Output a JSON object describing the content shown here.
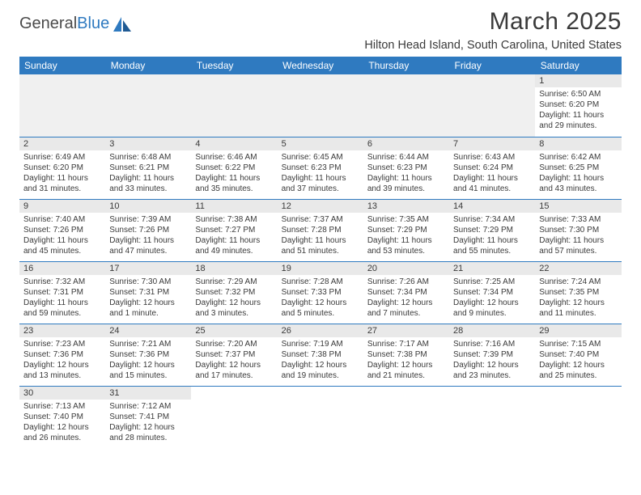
{
  "brand": {
    "part1": "General",
    "part2": "Blue"
  },
  "title": "March 2025",
  "location": "Hilton Head Island, South Carolina, United States",
  "colors": {
    "header_bg": "#2f7ac0",
    "header_fg": "#ffffff",
    "daynum_bg": "#e9e9e9",
    "text": "#3a3a3a",
    "rule": "#2f7ac0",
    "page_bg": "#ffffff"
  },
  "day_headers": [
    "Sunday",
    "Monday",
    "Tuesday",
    "Wednesday",
    "Thursday",
    "Friday",
    "Saturday"
  ],
  "weeks": [
    [
      null,
      null,
      null,
      null,
      null,
      null,
      {
        "n": "1",
        "sr": "Sunrise: 6:50 AM",
        "ss": "Sunset: 6:20 PM",
        "dl": "Daylight: 11 hours and 29 minutes."
      }
    ],
    [
      {
        "n": "2",
        "sr": "Sunrise: 6:49 AM",
        "ss": "Sunset: 6:20 PM",
        "dl": "Daylight: 11 hours and 31 minutes."
      },
      {
        "n": "3",
        "sr": "Sunrise: 6:48 AM",
        "ss": "Sunset: 6:21 PM",
        "dl": "Daylight: 11 hours and 33 minutes."
      },
      {
        "n": "4",
        "sr": "Sunrise: 6:46 AM",
        "ss": "Sunset: 6:22 PM",
        "dl": "Daylight: 11 hours and 35 minutes."
      },
      {
        "n": "5",
        "sr": "Sunrise: 6:45 AM",
        "ss": "Sunset: 6:23 PM",
        "dl": "Daylight: 11 hours and 37 minutes."
      },
      {
        "n": "6",
        "sr": "Sunrise: 6:44 AM",
        "ss": "Sunset: 6:23 PM",
        "dl": "Daylight: 11 hours and 39 minutes."
      },
      {
        "n": "7",
        "sr": "Sunrise: 6:43 AM",
        "ss": "Sunset: 6:24 PM",
        "dl": "Daylight: 11 hours and 41 minutes."
      },
      {
        "n": "8",
        "sr": "Sunrise: 6:42 AM",
        "ss": "Sunset: 6:25 PM",
        "dl": "Daylight: 11 hours and 43 minutes."
      }
    ],
    [
      {
        "n": "9",
        "sr": "Sunrise: 7:40 AM",
        "ss": "Sunset: 7:26 PM",
        "dl": "Daylight: 11 hours and 45 minutes."
      },
      {
        "n": "10",
        "sr": "Sunrise: 7:39 AM",
        "ss": "Sunset: 7:26 PM",
        "dl": "Daylight: 11 hours and 47 minutes."
      },
      {
        "n": "11",
        "sr": "Sunrise: 7:38 AM",
        "ss": "Sunset: 7:27 PM",
        "dl": "Daylight: 11 hours and 49 minutes."
      },
      {
        "n": "12",
        "sr": "Sunrise: 7:37 AM",
        "ss": "Sunset: 7:28 PM",
        "dl": "Daylight: 11 hours and 51 minutes."
      },
      {
        "n": "13",
        "sr": "Sunrise: 7:35 AM",
        "ss": "Sunset: 7:29 PM",
        "dl": "Daylight: 11 hours and 53 minutes."
      },
      {
        "n": "14",
        "sr": "Sunrise: 7:34 AM",
        "ss": "Sunset: 7:29 PM",
        "dl": "Daylight: 11 hours and 55 minutes."
      },
      {
        "n": "15",
        "sr": "Sunrise: 7:33 AM",
        "ss": "Sunset: 7:30 PM",
        "dl": "Daylight: 11 hours and 57 minutes."
      }
    ],
    [
      {
        "n": "16",
        "sr": "Sunrise: 7:32 AM",
        "ss": "Sunset: 7:31 PM",
        "dl": "Daylight: 11 hours and 59 minutes."
      },
      {
        "n": "17",
        "sr": "Sunrise: 7:30 AM",
        "ss": "Sunset: 7:31 PM",
        "dl": "Daylight: 12 hours and 1 minute."
      },
      {
        "n": "18",
        "sr": "Sunrise: 7:29 AM",
        "ss": "Sunset: 7:32 PM",
        "dl": "Daylight: 12 hours and 3 minutes."
      },
      {
        "n": "19",
        "sr": "Sunrise: 7:28 AM",
        "ss": "Sunset: 7:33 PM",
        "dl": "Daylight: 12 hours and 5 minutes."
      },
      {
        "n": "20",
        "sr": "Sunrise: 7:26 AM",
        "ss": "Sunset: 7:34 PM",
        "dl": "Daylight: 12 hours and 7 minutes."
      },
      {
        "n": "21",
        "sr": "Sunrise: 7:25 AM",
        "ss": "Sunset: 7:34 PM",
        "dl": "Daylight: 12 hours and 9 minutes."
      },
      {
        "n": "22",
        "sr": "Sunrise: 7:24 AM",
        "ss": "Sunset: 7:35 PM",
        "dl": "Daylight: 12 hours and 11 minutes."
      }
    ],
    [
      {
        "n": "23",
        "sr": "Sunrise: 7:23 AM",
        "ss": "Sunset: 7:36 PM",
        "dl": "Daylight: 12 hours and 13 minutes."
      },
      {
        "n": "24",
        "sr": "Sunrise: 7:21 AM",
        "ss": "Sunset: 7:36 PM",
        "dl": "Daylight: 12 hours and 15 minutes."
      },
      {
        "n": "25",
        "sr": "Sunrise: 7:20 AM",
        "ss": "Sunset: 7:37 PM",
        "dl": "Daylight: 12 hours and 17 minutes."
      },
      {
        "n": "26",
        "sr": "Sunrise: 7:19 AM",
        "ss": "Sunset: 7:38 PM",
        "dl": "Daylight: 12 hours and 19 minutes."
      },
      {
        "n": "27",
        "sr": "Sunrise: 7:17 AM",
        "ss": "Sunset: 7:38 PM",
        "dl": "Daylight: 12 hours and 21 minutes."
      },
      {
        "n": "28",
        "sr": "Sunrise: 7:16 AM",
        "ss": "Sunset: 7:39 PM",
        "dl": "Daylight: 12 hours and 23 minutes."
      },
      {
        "n": "29",
        "sr": "Sunrise: 7:15 AM",
        "ss": "Sunset: 7:40 PM",
        "dl": "Daylight: 12 hours and 25 minutes."
      }
    ],
    [
      {
        "n": "30",
        "sr": "Sunrise: 7:13 AM",
        "ss": "Sunset: 7:40 PM",
        "dl": "Daylight: 12 hours and 26 minutes."
      },
      {
        "n": "31",
        "sr": "Sunrise: 7:12 AM",
        "ss": "Sunset: 7:41 PM",
        "dl": "Daylight: 12 hours and 28 minutes."
      },
      null,
      null,
      null,
      null,
      null
    ]
  ]
}
